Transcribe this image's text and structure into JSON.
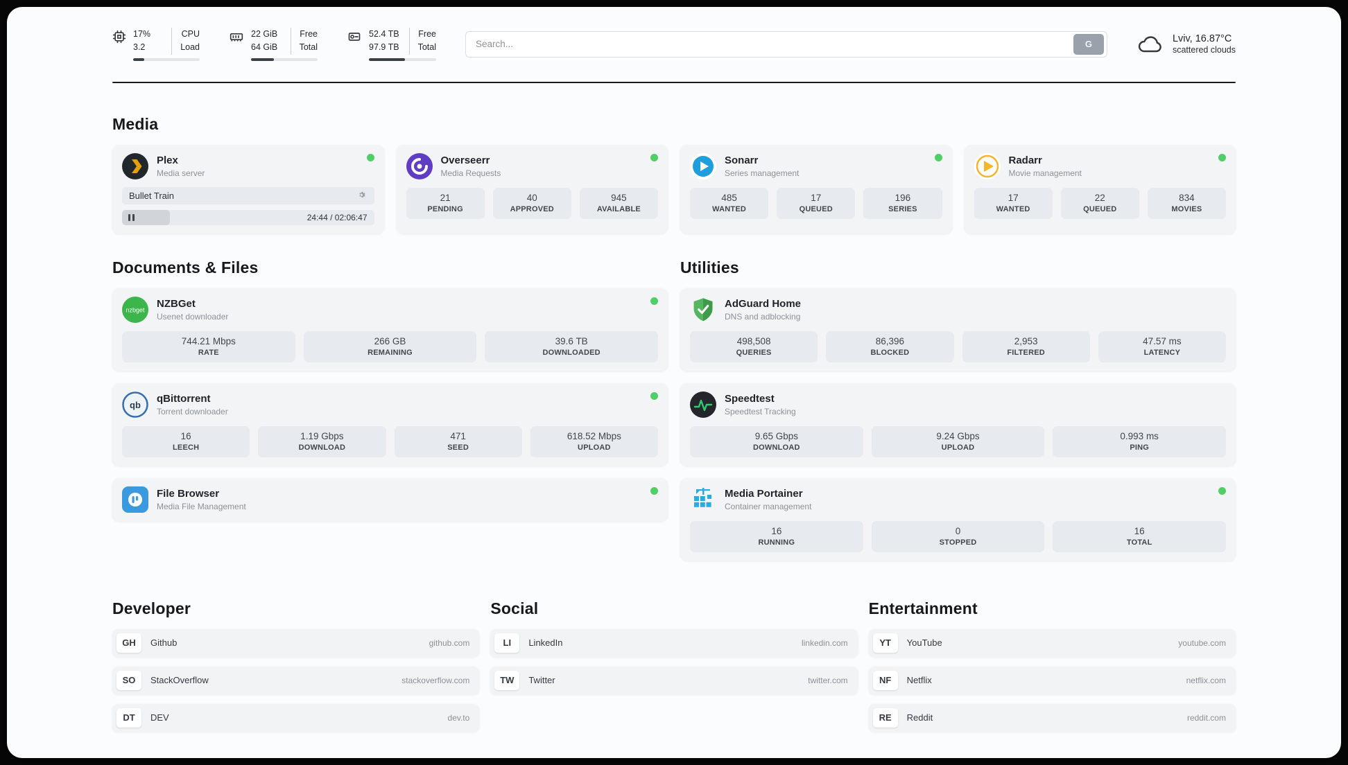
{
  "colors": {
    "status_online": "#51cf66",
    "panel_background": "#fbfcfd",
    "card_background": "#f2f4f6",
    "stat_background": "#e7eaee",
    "plex_accent": "#e5a00d"
  },
  "header": {
    "cpu": {
      "top_value": "17%",
      "bottom_value": "3.2",
      "top_label": "CPU",
      "bottom_label": "Load",
      "bar_percent": 17
    },
    "ram": {
      "top_value": "22 GiB",
      "bottom_value": "64 GiB",
      "top_label": "Free",
      "bottom_label": "Total",
      "bar_percent": 34
    },
    "disk": {
      "top_value": "52.4 TB",
      "bottom_value": "97.9 TB",
      "top_label": "Free",
      "bottom_label": "Total",
      "bar_percent": 54
    },
    "search": {
      "placeholder": "Search...",
      "button_label": "G"
    },
    "weather": {
      "location": "Lviv, 16.87°C",
      "condition": "scattered clouds"
    }
  },
  "media": {
    "title": "Media",
    "plex": {
      "name": "Plex",
      "subtitle": "Media server",
      "now_playing": "Bullet Train",
      "time": "24:44 / 02:06:47",
      "progress_percent": 19
    },
    "overseerr": {
      "name": "Overseerr",
      "subtitle": "Media Requests",
      "stats": [
        {
          "value": "21",
          "label": "PENDING"
        },
        {
          "value": "40",
          "label": "APPROVED"
        },
        {
          "value": "945",
          "label": "AVAILABLE"
        }
      ]
    },
    "sonarr": {
      "name": "Sonarr",
      "subtitle": "Series management",
      "stats": [
        {
          "value": "485",
          "label": "WANTED"
        },
        {
          "value": "17",
          "label": "QUEUED"
        },
        {
          "value": "196",
          "label": "SERIES"
        }
      ]
    },
    "radarr": {
      "name": "Radarr",
      "subtitle": "Movie management",
      "stats": [
        {
          "value": "17",
          "label": "WANTED"
        },
        {
          "value": "22",
          "label": "QUEUED"
        },
        {
          "value": "834",
          "label": "MOVIES"
        }
      ]
    }
  },
  "documents": {
    "title": "Documents & Files",
    "nzbget": {
      "name": "NZBGet",
      "subtitle": "Usenet downloader",
      "stats": [
        {
          "value": "744.21 Mbps",
          "label": "RATE"
        },
        {
          "value": "266 GB",
          "label": "REMAINING"
        },
        {
          "value": "39.6 TB",
          "label": "DOWNLOADED"
        }
      ]
    },
    "qbittorrent": {
      "name": "qBittorrent",
      "subtitle": "Torrent downloader",
      "stats": [
        {
          "value": "16",
          "label": "LEECH"
        },
        {
          "value": "1.19 Gbps",
          "label": "DOWNLOAD"
        },
        {
          "value": "471",
          "label": "SEED"
        },
        {
          "value": "618.52 Mbps",
          "label": "UPLOAD"
        }
      ]
    },
    "filebrowser": {
      "name": "File Browser",
      "subtitle": "Media File Management"
    }
  },
  "utilities": {
    "title": "Utilities",
    "adguard": {
      "name": "AdGuard Home",
      "subtitle": "DNS and adblocking",
      "stats": [
        {
          "value": "498,508",
          "label": "QUERIES"
        },
        {
          "value": "86,396",
          "label": "BLOCKED"
        },
        {
          "value": "2,953",
          "label": "FILTERED"
        },
        {
          "value": "47.57 ms",
          "label": "LATENCY"
        }
      ]
    },
    "speedtest": {
      "name": "Speedtest",
      "subtitle": "Speedtest Tracking",
      "stats": [
        {
          "value": "9.65 Gbps",
          "label": "DOWNLOAD"
        },
        {
          "value": "9.24 Gbps",
          "label": "UPLOAD"
        },
        {
          "value": "0.993 ms",
          "label": "PING"
        }
      ]
    },
    "portainer": {
      "name": "Media Portainer",
      "subtitle": "Container management",
      "stats": [
        {
          "value": "16",
          "label": "RUNNING"
        },
        {
          "value": "0",
          "label": "STOPPED"
        },
        {
          "value": "16",
          "label": "TOTAL"
        }
      ]
    }
  },
  "developer": {
    "title": "Developer",
    "links": [
      {
        "badge": "GH",
        "name": "Github",
        "url": "github.com"
      },
      {
        "badge": "SO",
        "name": "StackOverflow",
        "url": "stackoverflow.com"
      },
      {
        "badge": "DT",
        "name": "DEV",
        "url": "dev.to"
      }
    ]
  },
  "social": {
    "title": "Social",
    "links": [
      {
        "badge": "LI",
        "name": "LinkedIn",
        "url": "linkedin.com"
      },
      {
        "badge": "TW",
        "name": "Twitter",
        "url": "twitter.com"
      }
    ]
  },
  "entertainment": {
    "title": "Entertainment",
    "links": [
      {
        "badge": "YT",
        "name": "YouTube",
        "url": "youtube.com"
      },
      {
        "badge": "NF",
        "name": "Netflix",
        "url": "netflix.com"
      },
      {
        "badge": "RE",
        "name": "Reddit",
        "url": "reddit.com"
      }
    ]
  }
}
